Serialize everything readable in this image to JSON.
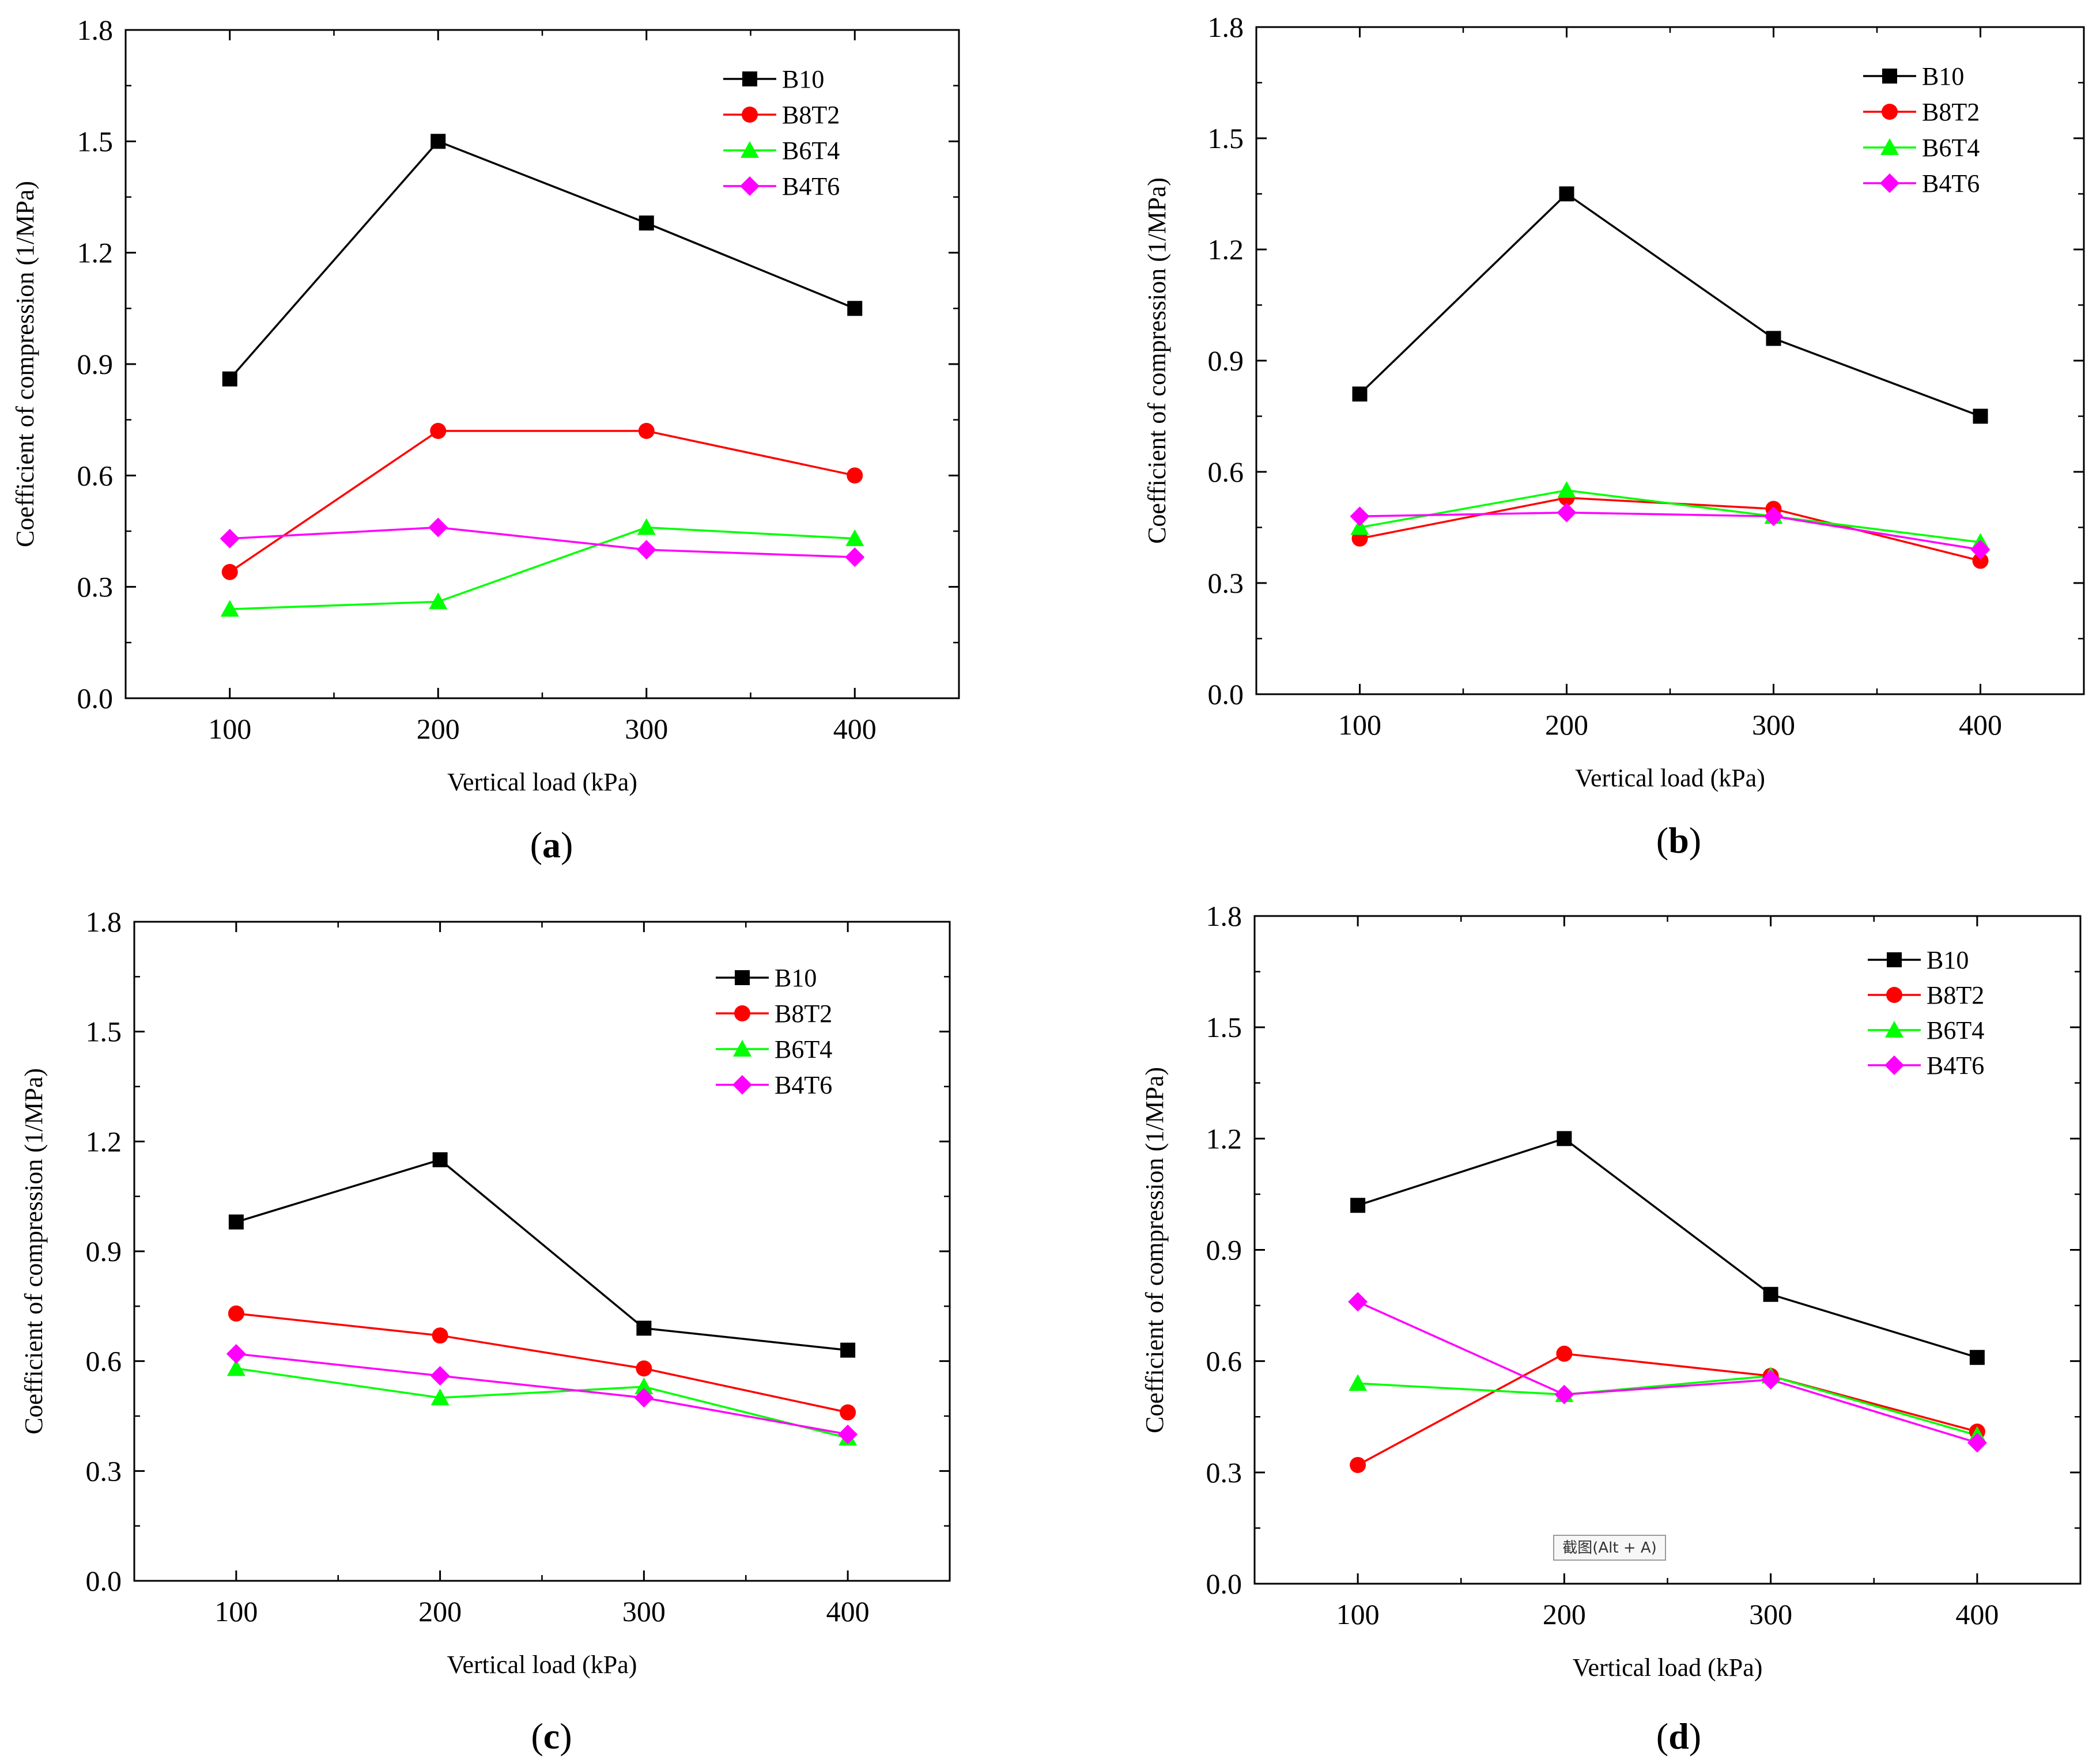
{
  "chart_data": [
    {
      "type": "line",
      "panel_label": "a",
      "xlabel": "Vertical load (kPa)",
      "ylabel": "Coefficient of compression (1/MPa)",
      "x": [
        100,
        200,
        300,
        400
      ],
      "x_ticks": [
        "100",
        "200",
        "300",
        "400"
      ],
      "y_ticks": [
        "0.0",
        "0.3",
        "0.6",
        "0.9",
        "1.2",
        "1.5",
        "1.8"
      ],
      "xlim": [
        50,
        450
      ],
      "ylim": [
        0,
        1.8
      ],
      "legend_position": "top-right",
      "series": [
        {
          "name": "B10",
          "color": "#000000",
          "marker": "square",
          "values": [
            0.86,
            1.5,
            1.28,
            1.05
          ]
        },
        {
          "name": "B8T2",
          "color": "#ff0000",
          "marker": "circle",
          "values": [
            0.34,
            0.72,
            0.72,
            0.6
          ]
        },
        {
          "name": "B6T4",
          "color": "#00ff00",
          "marker": "triangle",
          "values": [
            0.24,
            0.26,
            0.46,
            0.43
          ]
        },
        {
          "name": "B4T6",
          "color": "#ff00ff",
          "marker": "diamond",
          "values": [
            0.43,
            0.46,
            0.4,
            0.38
          ]
        }
      ]
    },
    {
      "type": "line",
      "panel_label": "b",
      "xlabel": "Vertical load (kPa)",
      "ylabel": "Coefficient of compression (1/MPa)",
      "x": [
        100,
        200,
        300,
        400
      ],
      "x_ticks": [
        "100",
        "200",
        "300",
        "400"
      ],
      "y_ticks": [
        "0.0",
        "0.3",
        "0.6",
        "0.9",
        "1.2",
        "1.5",
        "1.8"
      ],
      "xlim": [
        50,
        450
      ],
      "ylim": [
        0,
        1.8
      ],
      "legend_position": "top-right",
      "series": [
        {
          "name": "B10",
          "color": "#000000",
          "marker": "square",
          "values": [
            0.81,
            1.35,
            0.96,
            0.75
          ]
        },
        {
          "name": "B8T2",
          "color": "#ff0000",
          "marker": "circle",
          "values": [
            0.42,
            0.53,
            0.5,
            0.36
          ]
        },
        {
          "name": "B6T4",
          "color": "#00ff00",
          "marker": "triangle",
          "values": [
            0.45,
            0.55,
            0.48,
            0.41
          ]
        },
        {
          "name": "B4T6",
          "color": "#ff00ff",
          "marker": "diamond",
          "values": [
            0.48,
            0.49,
            0.48,
            0.39
          ]
        }
      ]
    },
    {
      "type": "line",
      "panel_label": "c",
      "xlabel": "Vertical load (kPa)",
      "ylabel": "Coefficient of compression (1/MPa)",
      "x": [
        100,
        200,
        300,
        400
      ],
      "x_ticks": [
        "100",
        "200",
        "300",
        "400"
      ],
      "y_ticks": [
        "0.0",
        "0.3",
        "0.6",
        "0.9",
        "1.2",
        "1.5",
        "1.8"
      ],
      "xlim": [
        50,
        450
      ],
      "ylim": [
        0,
        1.8
      ],
      "legend_position": "top-right",
      "series": [
        {
          "name": "B10",
          "color": "#000000",
          "marker": "square",
          "values": [
            0.98,
            1.15,
            0.69,
            0.63
          ]
        },
        {
          "name": "B8T2",
          "color": "#ff0000",
          "marker": "circle",
          "values": [
            0.73,
            0.67,
            0.58,
            0.46
          ]
        },
        {
          "name": "B6T4",
          "color": "#00ff00",
          "marker": "triangle",
          "values": [
            0.58,
            0.5,
            0.53,
            0.39
          ]
        },
        {
          "name": "B4T6",
          "color": "#ff00ff",
          "marker": "diamond",
          "values": [
            0.62,
            0.56,
            0.5,
            0.4
          ]
        }
      ]
    },
    {
      "type": "line",
      "panel_label": "d",
      "xlabel": "Vertical load (kPa)",
      "ylabel": "Coefficient of compression (1/MPa)",
      "x": [
        100,
        200,
        300,
        400
      ],
      "x_ticks": [
        "100",
        "200",
        "300",
        "400"
      ],
      "y_ticks": [
        "0.0",
        "0.3",
        "0.6",
        "0.9",
        "1.2",
        "1.5",
        "1.8"
      ],
      "xlim": [
        50,
        450
      ],
      "ylim": [
        0,
        1.8
      ],
      "legend_position": "top-right",
      "annotation": "截图(Alt + A)",
      "series": [
        {
          "name": "B10",
          "color": "#000000",
          "marker": "square",
          "values": [
            1.02,
            1.2,
            0.78,
            0.61
          ]
        },
        {
          "name": "B8T2",
          "color": "#ff0000",
          "marker": "circle",
          "values": [
            0.32,
            0.62,
            0.56,
            0.41
          ]
        },
        {
          "name": "B6T4",
          "color": "#00ff00",
          "marker": "triangle",
          "values": [
            0.54,
            0.51,
            0.56,
            0.4
          ]
        },
        {
          "name": "B4T6",
          "color": "#ff00ff",
          "marker": "diamond",
          "values": [
            0.76,
            0.51,
            0.55,
            0.38
          ]
        }
      ]
    }
  ]
}
